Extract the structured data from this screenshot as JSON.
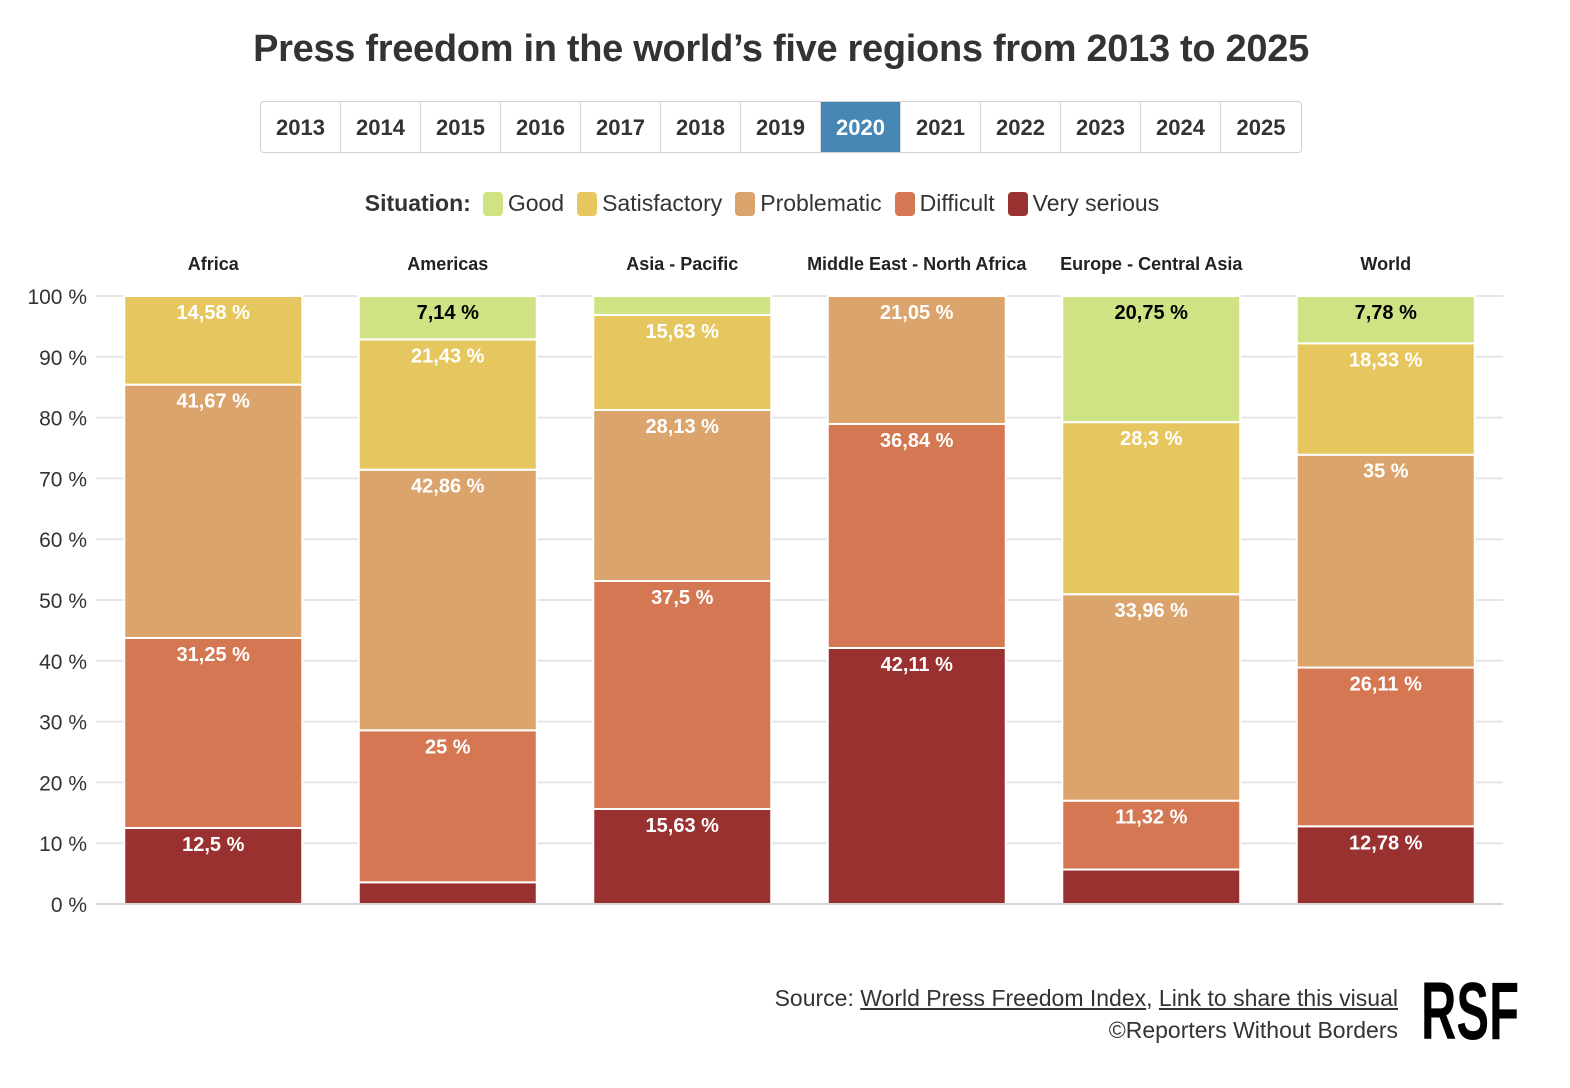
{
  "title": "Press freedom in the world’s five regions from 2013 to 2025",
  "years": [
    "2013",
    "2014",
    "2015",
    "2016",
    "2017",
    "2018",
    "2019",
    "2020",
    "2021",
    "2022",
    "2023",
    "2024",
    "2025"
  ],
  "selected_year": "2020",
  "legend": {
    "title": "Situation:",
    "items": [
      {
        "label": "Good",
        "color": "#cfe384"
      },
      {
        "label": "Satisfactory",
        "color": "#e6c75f"
      },
      {
        "label": "Problematic",
        "color": "#dba46c"
      },
      {
        "label": "Difficult",
        "color": "#d47752"
      },
      {
        "label": "Very serious",
        "color": "#993130"
      }
    ]
  },
  "chart_data": {
    "type": "bar",
    "stacked": true,
    "categories": [
      "Africa",
      "Americas",
      "Asia - Pacific",
      "Middle East - North Africa",
      "Europe - Central Asia",
      "World"
    ],
    "ylim": [
      0,
      100
    ],
    "yticks": [
      "0 %",
      "10 %",
      "20 %",
      "30 %",
      "40 %",
      "50 %",
      "60 %",
      "70 %",
      "80 %",
      "90 %",
      "100 %"
    ],
    "grid": true,
    "legend_position": "top",
    "series": [
      {
        "name": "Very serious",
        "color": "#993130",
        "values": [
          12.5,
          3.57,
          15.63,
          42.11,
          5.67,
          12.78
        ],
        "labels": [
          "12,5 %",
          "",
          "15,63 %",
          "42,11 %",
          "",
          "12,78 %"
        ]
      },
      {
        "name": "Difficult",
        "color": "#d47752",
        "values": [
          31.25,
          25,
          37.5,
          36.84,
          11.32,
          26.11
        ],
        "labels": [
          "31,25 %",
          "25 %",
          "37,5 %",
          "36,84 %",
          "11,32 %",
          "26,11 %"
        ]
      },
      {
        "name": "Problematic",
        "color": "#dba46c",
        "values": [
          41.67,
          42.86,
          28.13,
          21.05,
          33.96,
          35
        ],
        "labels": [
          "41,67 %",
          "42,86 %",
          "28,13 %",
          "21,05 %",
          "33,96 %",
          "35 %"
        ]
      },
      {
        "name": "Satisfactory",
        "color": "#e6c75f",
        "values": [
          14.58,
          21.43,
          15.63,
          0,
          28.3,
          18.33
        ],
        "labels": [
          "14,58 %",
          "21,43 %",
          "15,63 %",
          "",
          "28,3 %",
          "18,33 %"
        ]
      },
      {
        "name": "Good",
        "color": "#cfe384",
        "values": [
          0,
          7.14,
          3.11,
          0,
          20.75,
          7.78
        ],
        "labels": [
          "",
          "7,14 %",
          "",
          "",
          "20,75 %",
          "7,78 %"
        ]
      }
    ]
  },
  "footer": {
    "source_prefix": "Source: ",
    "source_link": "World Press Freedom Index",
    "separator": ", ",
    "share_link": "Link to share this visual",
    "copyright": "©Reporters Without Borders",
    "logo_text": "RSF"
  }
}
